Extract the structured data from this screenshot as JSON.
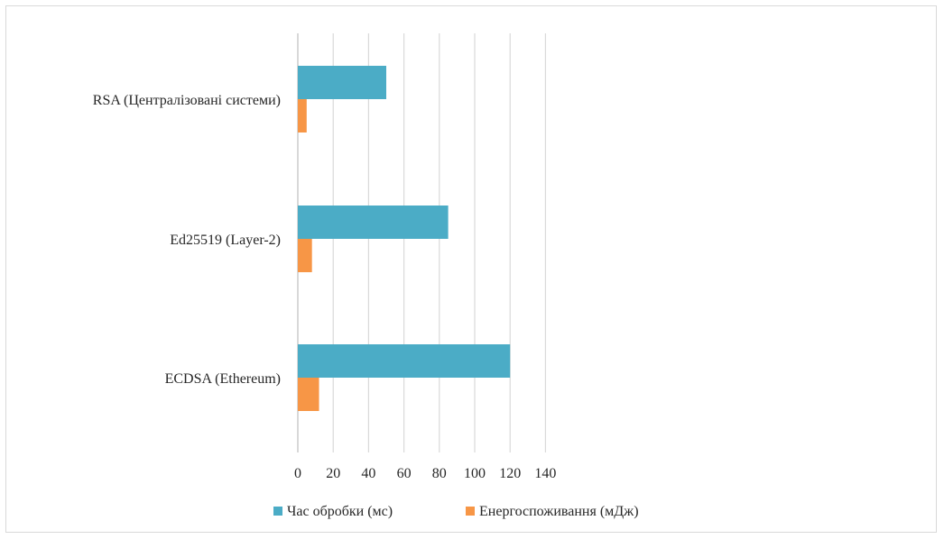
{
  "chart_data": {
    "type": "bar",
    "orientation": "horizontal",
    "categories": [
      "RSA (Централізовані  системи)",
      "Ed25519 (Layer-2)",
      "ECDSA (Ethereum)"
    ],
    "series": [
      {
        "name": "Час обробки (мс)",
        "values": [
          50,
          85,
          120
        ],
        "color": "#4bacc6"
      },
      {
        "name": "Енергоспоживання (мДж)",
        "values": [
          5,
          8,
          12
        ],
        "color": "#f79646"
      }
    ],
    "xlim": [
      0,
      140
    ],
    "xticks": [
      0,
      20,
      40,
      60,
      80,
      100,
      120,
      140
    ],
    "grid": "vertical",
    "legend_position": "bottom"
  }
}
